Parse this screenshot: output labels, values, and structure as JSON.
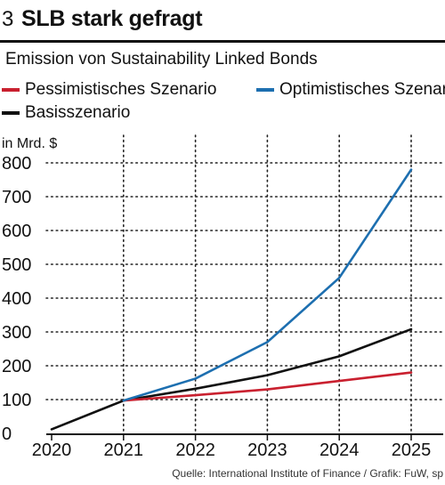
{
  "header": {
    "number": "3",
    "title": "SLB stark gefragt"
  },
  "chart_data": {
    "type": "line",
    "subtitle": "Emission von Sustainability Linked Bonds",
    "ylabel": "in Mrd. $",
    "xlabel": "",
    "x": [
      2020,
      2021,
      2022,
      2023,
      2024,
      2025
    ],
    "ylim": [
      0,
      800
    ],
    "yticks": [
      0,
      100,
      200,
      300,
      400,
      500,
      600,
      700,
      800
    ],
    "grid": "dotted",
    "series": [
      {
        "name": "Pessimistisches Szenario",
        "color": "#c9202f",
        "x": [
          2021,
          2022,
          2023,
          2024,
          2025
        ],
        "values": [
          97,
          113,
          130,
          155,
          180
        ]
      },
      {
        "name": "Optimistisches Szenario",
        "color": "#1d6fb0",
        "x": [
          2021,
          2022,
          2023,
          2024,
          2025
        ],
        "values": [
          97,
          162,
          270,
          460,
          780
        ]
      },
      {
        "name": "Basisszenario",
        "color": "#111111",
        "x": [
          2020,
          2021,
          2022,
          2023,
          2024,
          2025
        ],
        "values": [
          12,
          97,
          132,
          172,
          228,
          308
        ]
      }
    ]
  },
  "source": "Quelle: International Institute of Finance / Grafik: FuW, sp"
}
